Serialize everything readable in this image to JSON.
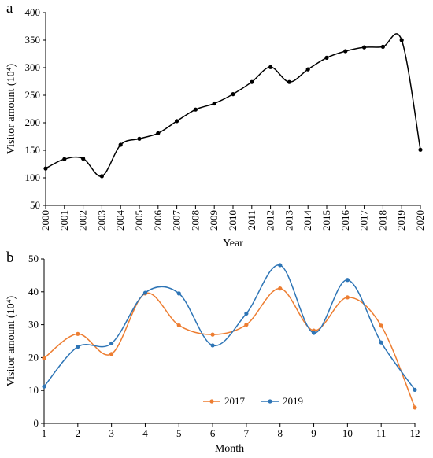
{
  "chart_data": [
    {
      "type": "line",
      "panel_label": "a",
      "xlabel": "Year",
      "ylabel": "Visitor amount (10⁴)",
      "x": [
        "2000",
        "2001",
        "2002",
        "2003",
        "2004",
        "2005",
        "2006",
        "2007",
        "2008",
        "2009",
        "2010",
        "2011",
        "2012",
        "2013",
        "2014",
        "2015",
        "2016",
        "2017",
        "2018",
        "2019",
        "2020"
      ],
      "series": [
        {
          "name": "",
          "color": "#000000",
          "values": [
            117,
            134,
            135,
            103,
            160,
            171,
            181,
            203,
            224,
            235,
            252,
            274,
            301,
            274,
            297,
            318,
            330,
            337,
            338,
            350,
            151
          ]
        }
      ],
      "ylim": [
        50,
        400
      ],
      "yticks": [
        50,
        100,
        150,
        200,
        250,
        300,
        350,
        400
      ],
      "legend": "none",
      "grid": false
    },
    {
      "type": "line",
      "panel_label": "b",
      "xlabel": "Month",
      "ylabel": "Visitor amount (10⁴)",
      "x": [
        "1",
        "2",
        "3",
        "4",
        "5",
        "6",
        "7",
        "8",
        "9",
        "10",
        "11",
        "12"
      ],
      "series": [
        {
          "name": "2017",
          "color": "#ED7D31",
          "values": [
            19.8,
            27.2,
            21.1,
            39.5,
            29.8,
            27.0,
            30.0,
            41.0,
            28.2,
            38.3,
            29.7,
            4.8
          ]
        },
        {
          "name": "2019",
          "color": "#2E75B6",
          "values": [
            11.2,
            23.3,
            24.3,
            39.7,
            39.5,
            23.7,
            33.4,
            48.1,
            27.5,
            43.6,
            24.6,
            10.2
          ]
        }
      ],
      "ylim": [
        0,
        50
      ],
      "yticks": [
        0,
        10,
        20,
        30,
        40,
        50
      ],
      "legend": "bottom-center",
      "grid": false
    }
  ]
}
